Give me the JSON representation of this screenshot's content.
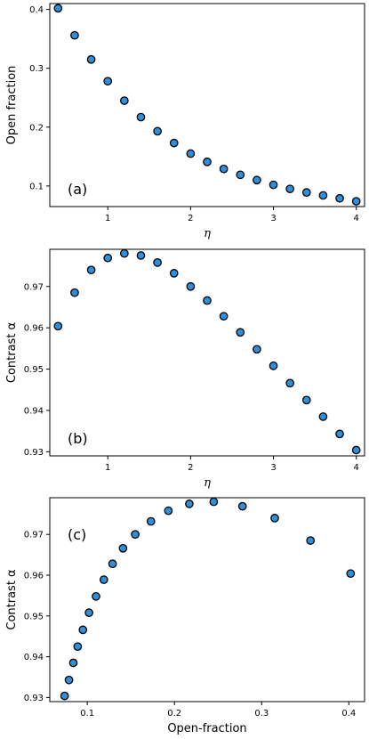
{
  "chart_data": [
    {
      "type": "scatter",
      "panel_label": "(a)",
      "xlabel": "η",
      "ylabel": "Open fraction",
      "xlim": [
        0.3,
        4.1
      ],
      "ylim": [
        0.065,
        0.41
      ],
      "xticks": [
        "1",
        "2",
        "3",
        "4"
      ],
      "xtick_values": [
        1,
        2,
        3,
        4
      ],
      "yticks": [
        "0.1",
        "0.2",
        "0.3",
        "0.4"
      ],
      "ytick_values": [
        0.1,
        0.2,
        0.3,
        0.4
      ],
      "grid": false,
      "marker_color": "#2e8fdb",
      "series": [
        {
          "x": [
            0.4,
            0.6,
            0.8,
            1.0,
            1.2,
            1.4,
            1.6,
            1.8,
            2.0,
            2.2,
            2.4,
            2.6,
            2.8,
            3.0,
            3.2,
            3.4,
            3.6,
            3.8,
            4.0
          ],
          "y": [
            0.402,
            0.356,
            0.315,
            0.278,
            0.245,
            0.217,
            0.193,
            0.173,
            0.155,
            0.141,
            0.129,
            0.119,
            0.11,
            0.102,
            0.095,
            0.089,
            0.084,
            0.079,
            0.074
          ]
        }
      ]
    },
    {
      "type": "scatter",
      "panel_label": "(b)",
      "xlabel": "η",
      "ylabel": "Contrast α",
      "xlim": [
        0.3,
        4.1
      ],
      "ylim": [
        0.929,
        0.979
      ],
      "xticks": [
        "1",
        "2",
        "3",
        "4"
      ],
      "xtick_values": [
        1,
        2,
        3,
        4
      ],
      "yticks": [
        "0.93",
        "0.94",
        "0.95",
        "0.96",
        "0.97"
      ],
      "ytick_values": [
        0.93,
        0.94,
        0.95,
        0.96,
        0.97
      ],
      "grid": false,
      "marker_color": "#2e8fdb",
      "series": [
        {
          "x": [
            0.4,
            0.6,
            0.8,
            1.0,
            1.2,
            1.4,
            1.6,
            1.8,
            2.0,
            2.2,
            2.4,
            2.6,
            2.8,
            3.0,
            3.2,
            3.4,
            3.6,
            3.8,
            4.0
          ],
          "y": [
            0.9604,
            0.9685,
            0.974,
            0.9769,
            0.978,
            0.9775,
            0.9758,
            0.9732,
            0.97,
            0.9666,
            0.9628,
            0.9589,
            0.9548,
            0.9508,
            0.9466,
            0.9425,
            0.9385,
            0.9343,
            0.9304
          ]
        }
      ]
    },
    {
      "type": "scatter",
      "panel_label": "(c)",
      "xlabel": "Open-fraction",
      "ylabel": "Contrast α",
      "xlim": [
        0.057,
        0.418
      ],
      "ylim": [
        0.929,
        0.979
      ],
      "xticks": [
        "0.1",
        "0.2",
        "0.3",
        "0.4"
      ],
      "xtick_values": [
        0.1,
        0.2,
        0.3,
        0.4
      ],
      "yticks": [
        "0.93",
        "0.94",
        "0.95",
        "0.96",
        "0.97"
      ],
      "ytick_values": [
        0.93,
        0.94,
        0.95,
        0.96,
        0.97
      ],
      "grid": false,
      "marker_color": "#2e8fdb",
      "series": [
        {
          "x": [
            0.402,
            0.356,
            0.315,
            0.278,
            0.245,
            0.217,
            0.193,
            0.173,
            0.155,
            0.141,
            0.129,
            0.119,
            0.11,
            0.102,
            0.095,
            0.089,
            0.084,
            0.079,
            0.074
          ],
          "y": [
            0.9604,
            0.9685,
            0.974,
            0.9769,
            0.978,
            0.9775,
            0.9758,
            0.9732,
            0.97,
            0.9666,
            0.9628,
            0.9589,
            0.9548,
            0.9508,
            0.9466,
            0.9425,
            0.9385,
            0.9343,
            0.9304
          ]
        }
      ]
    }
  ]
}
